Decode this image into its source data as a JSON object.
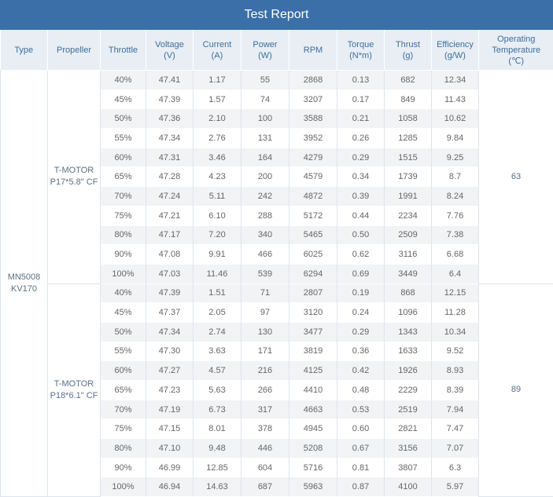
{
  "title": "Test Report",
  "headers": {
    "type": "Type",
    "propeller": "Propeller",
    "throttle": "Throttle",
    "voltage": [
      "Voltage",
      "(V)"
    ],
    "current": [
      "Current",
      "(A)"
    ],
    "power": [
      "Power",
      "(W)"
    ],
    "rpm": "RPM",
    "torque": [
      "Torque",
      "(N*m)"
    ],
    "thrust": [
      "Thrust",
      "(g)"
    ],
    "efficiency": [
      "Efficiency",
      "(g/W)"
    ],
    "temperature": [
      "Operating",
      "Temperature",
      "(℃)"
    ]
  },
  "type": [
    "MN5008",
    "KV170"
  ],
  "groups": [
    {
      "propeller": [
        "T-MOTOR",
        "P17*5.8\" CF"
      ],
      "temperature": "63",
      "rows": [
        [
          "40%",
          "47.41",
          "1.17",
          "55",
          "2868",
          "0.13",
          "682",
          "12.34"
        ],
        [
          "45%",
          "47.39",
          "1.57",
          "74",
          "3207",
          "0.17",
          "849",
          "11.43"
        ],
        [
          "50%",
          "47.36",
          "2.10",
          "100",
          "3588",
          "0.21",
          "1058",
          "10.62"
        ],
        [
          "55%",
          "47.34",
          "2.76",
          "131",
          "3952",
          "0.26",
          "1285",
          "9.84"
        ],
        [
          "60%",
          "47.31",
          "3.46",
          "164",
          "4279",
          "0.29",
          "1515",
          "9.25"
        ],
        [
          "65%",
          "47.28",
          "4.23",
          "200",
          "4579",
          "0.34",
          "1739",
          "8.7"
        ],
        [
          "70%",
          "47.24",
          "5.11",
          "242",
          "4872",
          "0.39",
          "1991",
          "8.24"
        ],
        [
          "75%",
          "47.21",
          "6.10",
          "288",
          "5172",
          "0.44",
          "2234",
          "7.76"
        ],
        [
          "80%",
          "47.17",
          "7.20",
          "340",
          "5465",
          "0.50",
          "2509",
          "7.38"
        ],
        [
          "90%",
          "47.08",
          "9.91",
          "466",
          "6025",
          "0.62",
          "3116",
          "6.68"
        ],
        [
          "100%",
          "47.03",
          "11.46",
          "539",
          "6294",
          "0.69",
          "3449",
          "6.4"
        ]
      ]
    },
    {
      "propeller": [
        "T-MOTOR",
        "P18*6.1\" CF"
      ],
      "temperature": "89",
      "rows": [
        [
          "40%",
          "47.39",
          "1.51",
          "71",
          "2807",
          "0.19",
          "868",
          "12.15"
        ],
        [
          "45%",
          "47.37",
          "2.05",
          "97",
          "3120",
          "0.24",
          "1096",
          "11.28"
        ],
        [
          "50%",
          "47.34",
          "2.74",
          "130",
          "3477",
          "0.29",
          "1343",
          "10.34"
        ],
        [
          "55%",
          "47.30",
          "3.63",
          "171",
          "3819",
          "0.36",
          "1633",
          "9.52"
        ],
        [
          "60%",
          "47.27",
          "4.57",
          "216",
          "4125",
          "0.42",
          "1926",
          "8.93"
        ],
        [
          "65%",
          "47.23",
          "5.63",
          "266",
          "4410",
          "0.48",
          "2229",
          "8.39"
        ],
        [
          "70%",
          "47.19",
          "6.73",
          "317",
          "4663",
          "0.53",
          "2519",
          "7.94"
        ],
        [
          "75%",
          "47.15",
          "8.01",
          "378",
          "4945",
          "0.60",
          "2821",
          "7.47"
        ],
        [
          "80%",
          "47.10",
          "9.48",
          "446",
          "5208",
          "0.67",
          "3156",
          "7.07"
        ],
        [
          "90%",
          "46.99",
          "12.85",
          "604",
          "5716",
          "0.81",
          "3807",
          "6.3"
        ],
        [
          "100%",
          "46.94",
          "14.63",
          "687",
          "5963",
          "0.87",
          "4100",
          "5.97"
        ]
      ]
    }
  ]
}
